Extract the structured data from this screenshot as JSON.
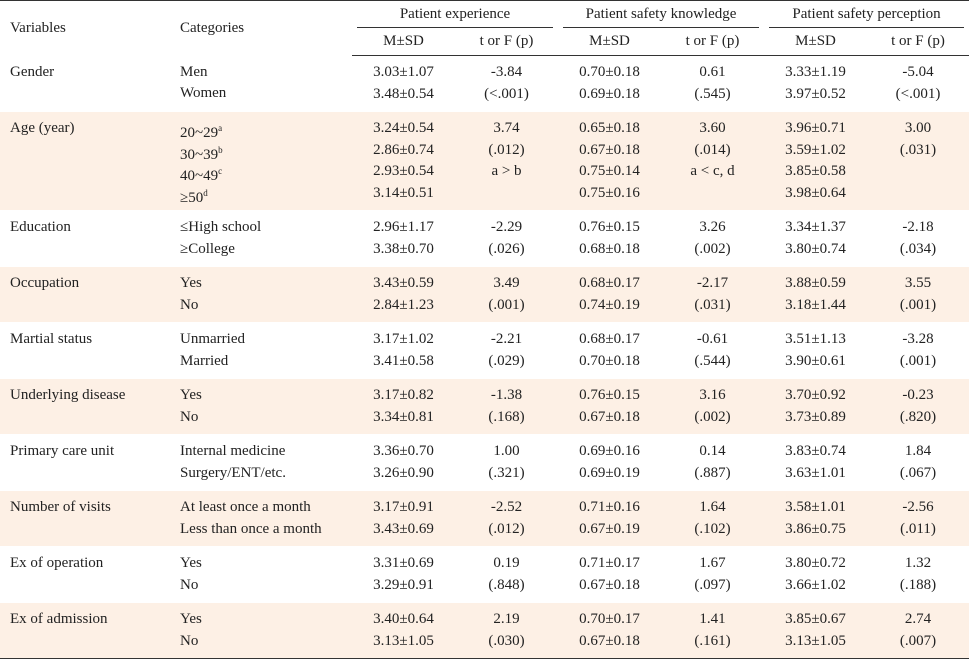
{
  "header": {
    "variables": "Variables",
    "categories": "Categories",
    "groups": [
      "Patient experience",
      "Patient safety knowledge",
      "Patient safety perception"
    ],
    "sub": [
      "M±SD",
      "t or F (p)"
    ]
  },
  "rows": [
    {
      "variable": "Gender",
      "categories": [
        "Men",
        "Women"
      ],
      "cols": [
        [
          "3.03±1.07",
          "3.48±0.54"
        ],
        [
          "-3.84",
          "(<.001)"
        ],
        [
          "0.70±0.18",
          "0.69±0.18"
        ],
        [
          "0.61",
          "(.545)"
        ],
        [
          "3.33±1.19",
          "3.97±0.52"
        ],
        [
          "-5.04",
          "(<.001)"
        ]
      ]
    },
    {
      "variable": "Age (year)",
      "categories": [
        {
          "label": "20~29",
          "sup": "a"
        },
        {
          "label": "30~39",
          "sup": "b"
        },
        {
          "label": "40~49",
          "sup": "c"
        },
        {
          "label": "≥50",
          "sup": "d"
        }
      ],
      "cols": [
        [
          "3.24±0.54",
          "2.86±0.74",
          "2.93±0.54",
          "3.14±0.51"
        ],
        [
          "3.74",
          "(.012)",
          "a > b"
        ],
        [
          "0.65±0.18",
          "0.67±0.18",
          "0.75±0.14",
          "0.75±0.16"
        ],
        [
          "3.60",
          "(.014)",
          "a < c, d"
        ],
        [
          "3.96±0.71",
          "3.59±1.02",
          "3.85±0.58",
          "3.98±0.64"
        ],
        [
          "3.00",
          "(.031)"
        ]
      ]
    },
    {
      "variable": "Education",
      "categories": [
        "≤High school",
        "≥College"
      ],
      "cols": [
        [
          "2.96±1.17",
          "3.38±0.70"
        ],
        [
          "-2.29",
          "(.026)"
        ],
        [
          "0.76±0.15",
          "0.68±0.18"
        ],
        [
          "3.26",
          "(.002)"
        ],
        [
          "3.34±1.37",
          "3.80±0.74"
        ],
        [
          "-2.18",
          "(.034)"
        ]
      ]
    },
    {
      "variable": "Occupation",
      "categories": [
        "Yes",
        "No"
      ],
      "cols": [
        [
          "3.43±0.59",
          "2.84±1.23"
        ],
        [
          "3.49",
          "(.001)"
        ],
        [
          "0.68±0.17",
          "0.74±0.19"
        ],
        [
          "-2.17",
          "(.031)"
        ],
        [
          "3.88±0.59",
          "3.18±1.44"
        ],
        [
          "3.55",
          "(.001)"
        ]
      ]
    },
    {
      "variable": "Martial status",
      "categories": [
        "Unmarried",
        "Married"
      ],
      "cols": [
        [
          "3.17±1.02",
          "3.41±0.58"
        ],
        [
          "-2.21",
          "(.029)"
        ],
        [
          "0.68±0.17",
          "0.70±0.18"
        ],
        [
          "-0.61",
          "(.544)"
        ],
        [
          "3.51±1.13",
          "3.90±0.61"
        ],
        [
          "-3.28",
          "(.001)"
        ]
      ]
    },
    {
      "variable": "Underlying disease",
      "categories": [
        "Yes",
        "No"
      ],
      "cols": [
        [
          "3.17±0.82",
          "3.34±0.81"
        ],
        [
          "-1.38",
          "(.168)"
        ],
        [
          "0.76±0.15",
          "0.67±0.18"
        ],
        [
          "3.16",
          "(.002)"
        ],
        [
          "3.70±0.92",
          "3.73±0.89"
        ],
        [
          "-0.23",
          "(.820)"
        ]
      ]
    },
    {
      "variable": "Primary care unit",
      "categories": [
        "Internal medicine",
        "Surgery/ENT/etc."
      ],
      "cols": [
        [
          "3.36±0.70",
          "3.26±0.90"
        ],
        [
          "1.00",
          "(.321)"
        ],
        [
          "0.69±0.16",
          "0.69±0.19"
        ],
        [
          "0.14",
          "(.887)"
        ],
        [
          "3.83±0.74",
          "3.63±1.01"
        ],
        [
          "1.84",
          "(.067)"
        ]
      ]
    },
    {
      "variable": "Number of visits",
      "categories": [
        "At least once a month",
        "Less than once a month"
      ],
      "cols": [
        [
          "3.17±0.91",
          "3.43±0.69"
        ],
        [
          "-2.52",
          "(.012)"
        ],
        [
          "0.71±0.16",
          "0.67±0.19"
        ],
        [
          "1.64",
          "(.102)"
        ],
        [
          "3.58±1.01",
          "3.86±0.75"
        ],
        [
          "-2.56",
          "(.011)"
        ]
      ]
    },
    {
      "variable": "Ex of operation",
      "categories": [
        "Yes",
        "No"
      ],
      "cols": [
        [
          "3.31±0.69",
          "3.29±0.91"
        ],
        [
          "0.19",
          "(.848)"
        ],
        [
          "0.71±0.17",
          "0.67±0.18"
        ],
        [
          "1.67",
          "(.097)"
        ],
        [
          "3.80±0.72",
          "3.66±1.02"
        ],
        [
          "1.32",
          "(.188)"
        ]
      ]
    },
    {
      "variable": "Ex of admission",
      "categories": [
        "Yes",
        "No"
      ],
      "cols": [
        [
          "3.40±0.64",
          "3.13±1.05"
        ],
        [
          "2.19",
          "(.030)"
        ],
        [
          "0.70±0.17",
          "0.67±0.18"
        ],
        [
          "1.41",
          "(.161)"
        ],
        [
          "3.85±0.67",
          "3.13±1.05"
        ],
        [
          "2.74",
          "(.007)"
        ]
      ]
    }
  ]
}
